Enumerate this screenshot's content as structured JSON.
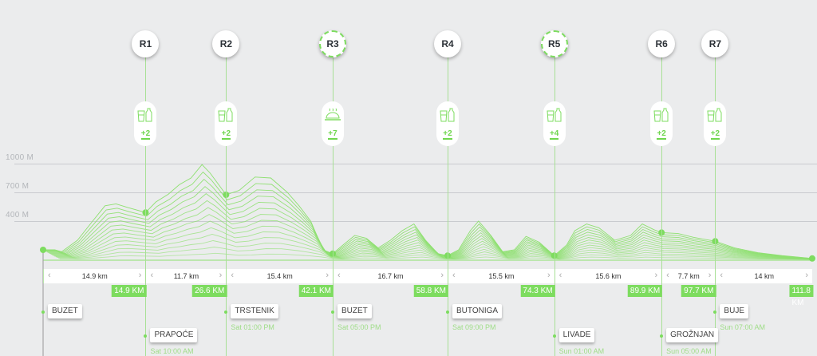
{
  "elevation_axis": {
    "labels": [
      "1000 M",
      "700 M",
      "400 M"
    ],
    "values": [
      1000,
      700,
      400
    ]
  },
  "colors": {
    "accent": "#7ddc5f",
    "line": "#8ee070",
    "background": "#ebeced"
  },
  "course": {
    "start_km": 0,
    "end_km": 111.8
  },
  "checkpoints": [
    {
      "id": "R1",
      "km": 14.9,
      "km_label": "14.9 KM",
      "supply": "drinks-icon",
      "count": "+2",
      "dashed": false
    },
    {
      "id": "R2",
      "km": 26.6,
      "km_label": "26.6 KM",
      "supply": "drinks-icon",
      "count": "+2",
      "dashed": false
    },
    {
      "id": "R3",
      "km": 42.1,
      "km_label": "42.1 KM",
      "supply": "food-cloche-icon",
      "count": "+7",
      "dashed": true
    },
    {
      "id": "R4",
      "km": 58.8,
      "km_label": "58.8 KM",
      "supply": "drinks-icon",
      "count": "+2",
      "dashed": false
    },
    {
      "id": "R5",
      "km": 74.3,
      "km_label": "74.3 KM",
      "supply": "drinks-icon",
      "count": "+4",
      "dashed": true
    },
    {
      "id": "R6",
      "km": 89.9,
      "km_label": "89.9 KM",
      "supply": "drinks-icon",
      "count": "+2",
      "dashed": false
    },
    {
      "id": "R7",
      "km": 97.7,
      "km_label": "97.7 KM",
      "supply": "drinks-icon",
      "count": "+2",
      "dashed": false
    }
  ],
  "finish": {
    "km_label": "111.8 KM"
  },
  "segments": [
    "14.9 km",
    "11.7 km",
    "15.4 km",
    "16.7 km",
    "15.5 km",
    "15.6 km",
    "7.7 km",
    "14 km"
  ],
  "locations": [
    {
      "name": "BUZET",
      "time": "",
      "row": 1
    },
    {
      "name": "PRAPOĆE",
      "time": "Sat 10:00 AM",
      "row": 2
    },
    {
      "name": "TRSTENIK",
      "time": "Sat 01:00 PM",
      "row": 1
    },
    {
      "name": "BUZET",
      "time": "Sat 05:00 PM",
      "row": 1
    },
    {
      "name": "BUTONIGA",
      "time": "Sat 09:00 PM",
      "row": 1
    },
    {
      "name": "LIVADE",
      "time": "Sun 01:00 AM",
      "row": 2
    },
    {
      "name": "GROŽNJAN",
      "time": "Sun 05:00 AM",
      "row": 2
    },
    {
      "name": "BUJE",
      "time": "Sun 07:00 AM",
      "row": 1
    }
  ],
  "chart_data": {
    "type": "line",
    "xlabel": "",
    "ylabel": "",
    "ylim": [
      0,
      1000
    ],
    "yticks": [
      "400 M",
      "700 M",
      "1000 M"
    ],
    "x_km": [
      0,
      1.7,
      2.7,
      5,
      7.2,
      9,
      10.6,
      12.4,
      14.9,
      16.4,
      18.2,
      19.8,
      21.5,
      23.1,
      24.3,
      26.6,
      28.5,
      30.8,
      33.1,
      35.5,
      37.2,
      38.9,
      40.7,
      42.1,
      43.6,
      45.3,
      47,
      48.7,
      50.5,
      52.2,
      53.9,
      55.6,
      57.4,
      58.8,
      60.4,
      62.1,
      63.3,
      65.1,
      66.8,
      68.5,
      70.2,
      72.1,
      74.3,
      76.1,
      77.3,
      79,
      80.8,
      83.1,
      85.4,
      87.1,
      88.8,
      89.9,
      92.3,
      94.6,
      97.7,
      100.5,
      103.9,
      107.4,
      111.8
    ],
    "elevation_m": [
      100,
      100,
      80,
      200,
      400,
      560,
      580,
      540,
      490,
      600,
      680,
      780,
      850,
      990,
      900,
      675,
      720,
      860,
      850,
      700,
      560,
      400,
      100,
      60,
      150,
      250,
      220,
      120,
      200,
      300,
      370,
      200,
      60,
      40,
      100,
      300,
      400,
      250,
      80,
      100,
      240,
      180,
      40,
      150,
      300,
      370,
      330,
      200,
      250,
      370,
      310,
      280,
      270,
      230,
      190,
      120,
      70,
      40,
      10
    ]
  }
}
